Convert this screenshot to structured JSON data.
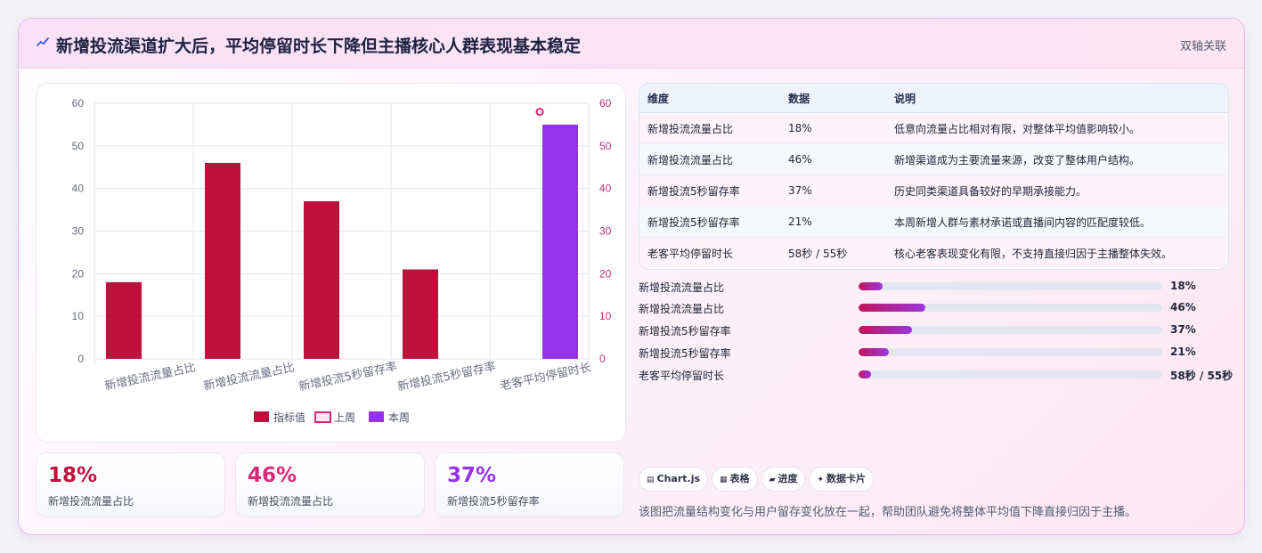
{
  "header": {
    "title": "新增投流渠道扩大后，平均停留时长下降但主播核心人群表现基本稳定",
    "tag": "双轴关联"
  },
  "chart_data": {
    "type": "bar",
    "categories": [
      "新增投流流量占比",
      "新增投流流量占比",
      "新增投流5秒留存率",
      "新增投流5秒留存率",
      "老客平均停留时长"
    ],
    "series": [
      {
        "name": "指标值",
        "axis": "left",
        "color": "#be123c",
        "values": [
          18,
          46,
          37,
          21,
          null
        ]
      },
      {
        "name": "上周",
        "axis": "right",
        "type": "scatter",
        "color": "#db2777",
        "values": [
          null,
          null,
          null,
          null,
          58
        ]
      },
      {
        "name": "本周",
        "axis": "right",
        "color": "#9333ea",
        "values": [
          null,
          null,
          null,
          null,
          55
        ]
      }
    ],
    "ylim_left": [
      0,
      60
    ],
    "ylim_right": [
      0,
      60
    ],
    "yticks": [
      0,
      10,
      20,
      30,
      40,
      50,
      60
    ],
    "grid": true,
    "legend": "bottom"
  },
  "kpis": [
    {
      "value": "18%",
      "label": "新增投流流量占比",
      "color": "#be123c"
    },
    {
      "value": "46%",
      "label": "新增投流流量占比",
      "color": "#db2777"
    },
    {
      "value": "37%",
      "label": "新增投流5秒留存率",
      "color": "#9333ea"
    }
  ],
  "table": {
    "headers": [
      "维度",
      "数据",
      "说明"
    ],
    "rows": [
      [
        "新增投流流量占比",
        "18%",
        "低意向流量占比相对有限，对整体平均值影响较小。"
      ],
      [
        "新增投流流量占比",
        "46%",
        "新增渠道成为主要流量来源，改变了整体用户结构。"
      ],
      [
        "新增投流5秒留存率",
        "37%",
        "历史同类渠道具备较好的早期承接能力。"
      ],
      [
        "新增投流5秒留存率",
        "21%",
        "本周新增人群与素材承诺或直播间内容的匹配度较低。"
      ],
      [
        "老客平均停留时长",
        "58秒 / 55秒",
        "核心老客表现变化有限，不支持直接归因于主播整体失效。"
      ]
    ]
  },
  "progress": [
    {
      "label": "新增投流流量占比",
      "value": "18%",
      "fraction": 0.08
    },
    {
      "label": "新增投流流量占比",
      "value": "46%",
      "fraction": 0.22
    },
    {
      "label": "新增投流5秒留存率",
      "value": "37%",
      "fraction": 0.175
    },
    {
      "label": "新增投流5秒留存率",
      "value": "21%",
      "fraction": 0.1
    },
    {
      "label": "老客平均停留时长",
      "value": "58秒 / 55秒",
      "fraction": 0.04
    }
  ],
  "chips": [
    {
      "icon": "▤",
      "label": "Chart.js"
    },
    {
      "icon": "▦",
      "label": "表格"
    },
    {
      "icon": "▰",
      "label": "进度"
    },
    {
      "icon": "✦",
      "label": "数据卡片"
    }
  ],
  "footer": "该图把流量结构变化与用户留存变化放在一起，帮助团队避免将整体平均值下降直接归因于主播。"
}
